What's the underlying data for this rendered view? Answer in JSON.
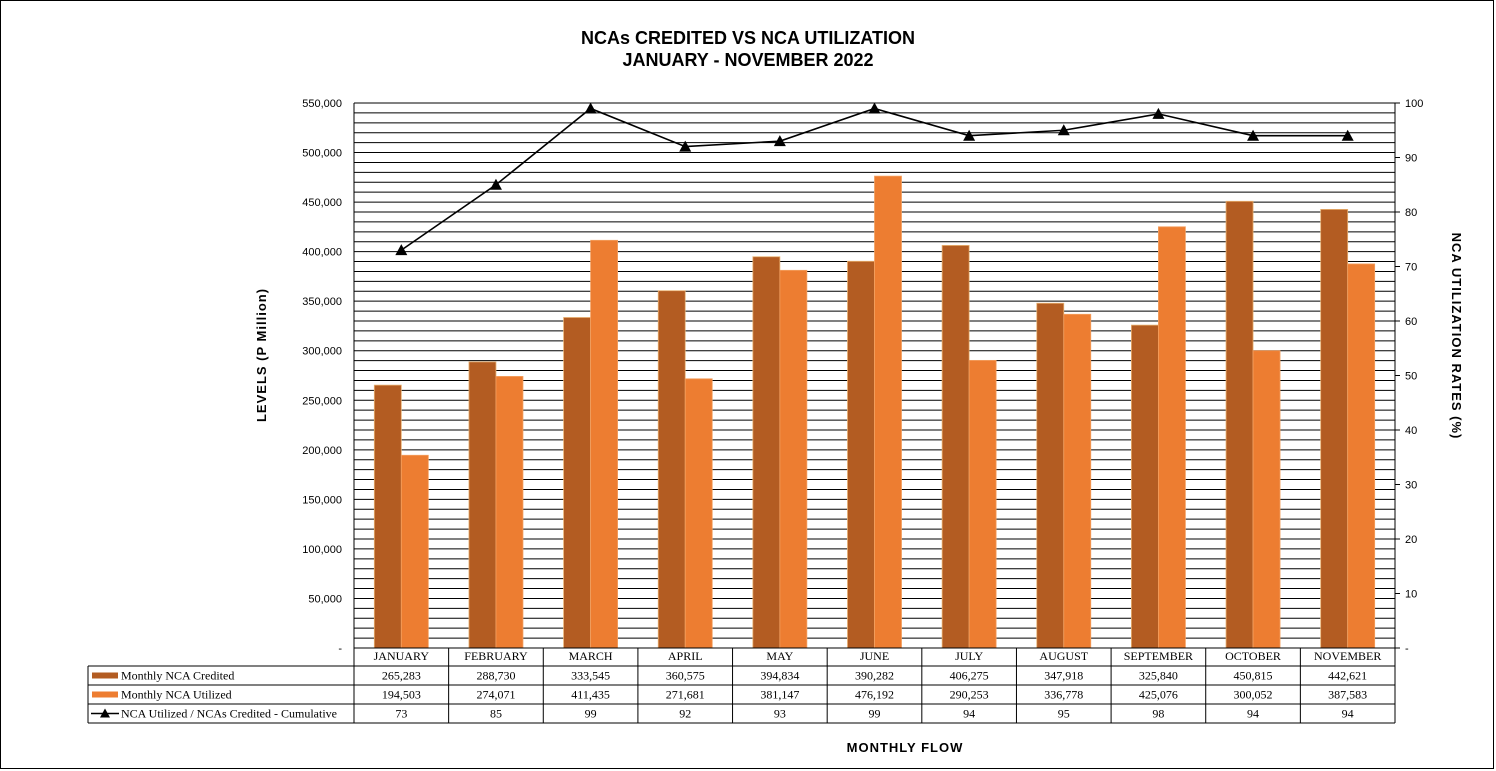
{
  "chart_title_line1": "NCAs CREDITED VS NCA UTILIZATION",
  "chart_title_line2": "JANUARY  - NOVEMBER 2022",
  "chart_data": {
    "type": "bar",
    "title": "NCAs CREDITED VS NCA UTILIZATION JANUARY - NOVEMBER 2022",
    "xlabel": "MONTHLY  FLOW",
    "ylabel": "LEVELS  (P Million)",
    "y2label": "NCA UTILIZATION RATES (%)",
    "ylim": [
      0,
      550000
    ],
    "y2lim": [
      0,
      100
    ],
    "yticks": [
      "-",
      "50,000",
      "100,000",
      "150,000",
      "200,000",
      "250,000",
      "300,000",
      "350,000",
      "400,000",
      "450,000",
      "500,000",
      "550,000"
    ],
    "y2ticks": [
      "-",
      "10",
      "20",
      "30",
      "40",
      "50",
      "60",
      "70",
      "80",
      "90",
      "100"
    ],
    "grid": true,
    "categories": [
      "JANUARY",
      "FEBRUARY",
      "MARCH",
      "APRIL",
      "MAY",
      "JUNE",
      "JULY",
      "AUGUST",
      "SEPTEMBER",
      "OCTOBER",
      "NOVEMBER"
    ],
    "series": [
      {
        "name": "Monthly NCA Credited",
        "type": "bar",
        "color": "#b35c22",
        "values": [
          265283,
          288730,
          333545,
          360575,
          394834,
          390282,
          406275,
          347918,
          325840,
          450815,
          442621
        ],
        "labels": [
          "265,283",
          "288,730",
          "333,545",
          "360,575",
          "394,834",
          "390,282",
          "406,275",
          "347,918",
          "325,840",
          "450,815",
          "442,621"
        ]
      },
      {
        "name": "Monthly NCA Utilized",
        "type": "bar",
        "color": "#ed7d31",
        "values": [
          194503,
          274071,
          411435,
          271681,
          381147,
          476192,
          290253,
          336778,
          425076,
          300052,
          387583
        ],
        "labels": [
          "194,503",
          "274,071",
          "411,435",
          "271,681",
          "381,147",
          "476,192",
          "290,253",
          "336,778",
          "425,076",
          "300,052",
          "387,583"
        ]
      },
      {
        "name": "NCA Utilized / NCAs Credited - Cumulative",
        "type": "line",
        "axis": "right",
        "color": "#000000",
        "marker": "triangle",
        "values": [
          73,
          85,
          99,
          92,
          93,
          99,
          94,
          95,
          98,
          94,
          94
        ],
        "labels": [
          "73",
          "85",
          "99",
          "92",
          "93",
          "99",
          "94",
          "95",
          "98",
          "94",
          "94"
        ]
      }
    ]
  }
}
